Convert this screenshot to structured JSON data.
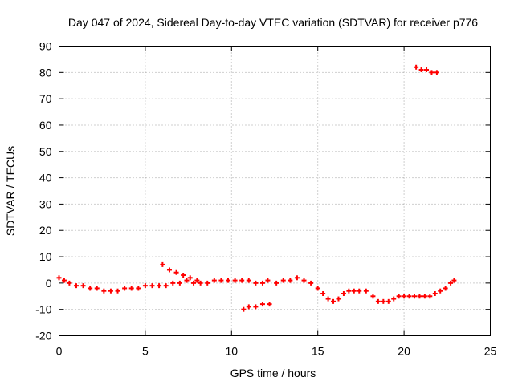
{
  "chart_data": {
    "type": "scatter",
    "title": "Day 047 of 2024, Sidereal Day-to-day VTEC variation (SDTVAR) for receiver p776",
    "xlabel": "GPS time / hours",
    "ylabel": "SDTVAR / TECUs",
    "xlim": [
      0,
      25
    ],
    "ylim": [
      -20,
      90
    ],
    "xticks": [
      0,
      5,
      10,
      15,
      20,
      25
    ],
    "yticks": [
      -20,
      -10,
      0,
      10,
      20,
      30,
      40,
      50,
      60,
      70,
      80,
      90
    ],
    "grid": true,
    "marker": "+",
    "series": [
      {
        "name": "SDTVAR",
        "color": "#ff0000",
        "x": [
          0.0,
          0.3,
          0.6,
          1.0,
          1.4,
          1.8,
          2.2,
          2.6,
          3.0,
          3.4,
          3.8,
          4.2,
          4.6,
          5.0,
          5.4,
          5.8,
          6.2,
          6.6,
          7.0,
          7.4,
          7.8,
          8.2,
          8.6,
          9.0,
          9.4,
          9.8,
          10.2,
          10.6,
          11.0,
          11.4,
          11.8,
          12.1,
          12.6,
          13.0,
          13.4,
          13.8,
          14.2,
          14.6,
          15.0,
          15.3,
          15.6,
          15.9,
          16.2,
          16.5,
          16.8,
          17.1,
          17.4,
          17.8,
          18.2,
          18.5,
          18.8,
          19.1,
          19.4,
          19.7,
          20.0,
          20.3,
          20.6,
          20.9,
          21.2,
          21.5,
          21.8,
          22.1,
          22.4,
          22.7,
          22.9,
          6.0,
          6.4,
          6.8,
          7.2,
          7.6,
          8.0,
          10.7,
          11.0,
          11.4,
          11.8,
          12.2,
          20.7,
          21.0,
          21.3,
          21.6,
          21.9
        ],
        "y": [
          2,
          1,
          0,
          -1,
          -1,
          -2,
          -2,
          -3,
          -3,
          -3,
          -2,
          -2,
          -2,
          -1,
          -1,
          -1,
          -1,
          0,
          0,
          1,
          0,
          0,
          0,
          1,
          1,
          1,
          1,
          1,
          1,
          0,
          0,
          1,
          0,
          1,
          1,
          2,
          1,
          0,
          -2,
          -4,
          -6,
          -7,
          -6,
          -4,
          -3,
          -3,
          -3,
          -3,
          -5,
          -7,
          -7,
          -7,
          -6,
          -5,
          -5,
          -5,
          -5,
          -5,
          -5,
          -5,
          -4,
          -3,
          -2,
          0,
          1,
          7,
          5,
          4,
          3,
          2,
          1,
          -10,
          -9,
          -9,
          -8,
          -8,
          82,
          81,
          81,
          80,
          80
        ]
      }
    ]
  }
}
